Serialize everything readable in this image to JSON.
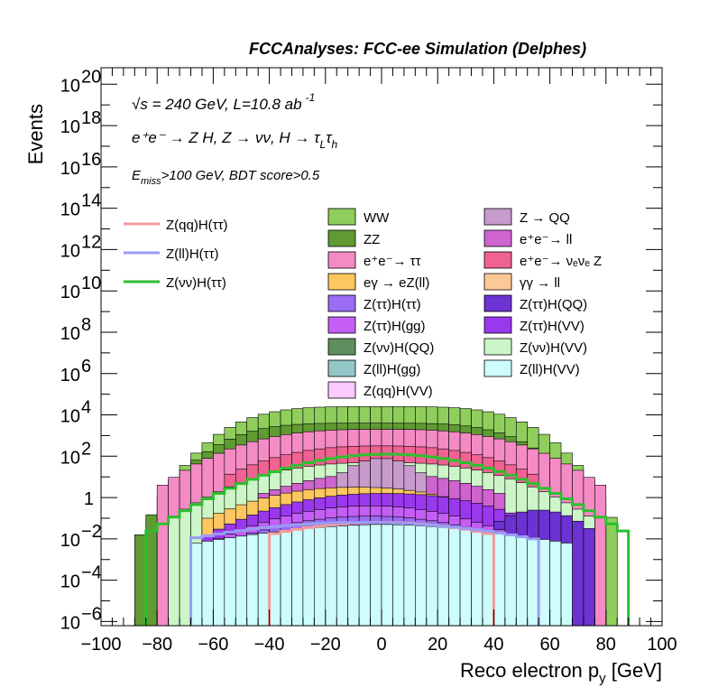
{
  "chart_data": {
    "type": "area",
    "header": "FCCAnalyses: FCC-ee Simulation (Delphes)",
    "ylabel": "Events",
    "xlabel": "Reco electron p",
    "xlabel_sub": "y",
    "xlabel_unit": " [GeV]",
    "annotations": {
      "energy": "√s = 240 GeV, L=10.8 ab",
      "energy_sup": "-1",
      "process": "e⁺e⁻ → Z H, Z → νν, H → τ",
      "process_sub1": "L",
      "process_tau": "τ",
      "process_sub2": "h",
      "cut_E": "E",
      "cut_sub": "miss",
      "cut_rest": ">100 GeV, BDT score>0.5"
    },
    "x_range": [
      -100,
      100
    ],
    "y_log_range": [
      -6.2,
      20.8
    ],
    "x_ticks": [
      {
        "v": -100,
        "label": "−100"
      },
      {
        "v": -80,
        "label": "−80"
      },
      {
        "v": -60,
        "label": "−60"
      },
      {
        "v": -40,
        "label": "−40"
      },
      {
        "v": -20,
        "label": "−20"
      },
      {
        "v": 0,
        "label": "0"
      },
      {
        "v": 20,
        "label": "20"
      },
      {
        "v": 40,
        "label": "40"
      },
      {
        "v": 60,
        "label": "60"
      },
      {
        "v": 80,
        "label": "80"
      },
      {
        "v": 100,
        "label": "100"
      }
    ],
    "y_ticks": [
      {
        "exp": -6,
        "base": "10",
        "sup": "−6"
      },
      {
        "exp": -4,
        "base": "10",
        "sup": "−4"
      },
      {
        "exp": -2,
        "base": "10",
        "sup": "−2"
      },
      {
        "exp": 0,
        "base": "1",
        "sup": ""
      },
      {
        "exp": 2,
        "base": "10",
        "sup": "2"
      },
      {
        "exp": 4,
        "base": "10",
        "sup": "4"
      },
      {
        "exp": 6,
        "base": "10",
        "sup": "6"
      },
      {
        "exp": 8,
        "base": "10",
        "sup": "8"
      },
      {
        "exp": 10,
        "base": "10",
        "sup": "10"
      },
      {
        "exp": 12,
        "base": "10",
        "sup": "12"
      },
      {
        "exp": 14,
        "base": "10",
        "sup": "14"
      },
      {
        "exp": 16,
        "base": "10",
        "sup": "16"
      },
      {
        "exp": 18,
        "base": "10",
        "sup": "18"
      },
      {
        "exp": 20,
        "base": "10",
        "sup": "20"
      }
    ],
    "stack_layers": [
      {
        "name": "WW",
        "color": "#8fce5c",
        "range": [
          -84,
          84
        ],
        "peak": 4.4,
        "edge": -1.5,
        "shape": 0.5
      },
      {
        "name": "ZZ",
        "color": "#5f9a32",
        "range": [
          -86,
          80
        ],
        "peak": 3.6,
        "edge": -1.8,
        "shape": 0.5
      },
      {
        "name": "e⁺e⁻→ ττ",
        "color": "#f58bc5",
        "range": [
          -78,
          78
        ],
        "peak": 3.3,
        "edge": 0.6,
        "shape": 0.7
      },
      {
        "name": "e⁺e⁻→ νₑνₑ Z",
        "color": "#f06292",
        "range": [
          -56,
          56
        ],
        "peak": 2.5,
        "edge": 1.0,
        "shape": 0.8
      },
      {
        "name": "Z(νν)H(VV)",
        "color": "#ccf5c8",
        "range": [
          -74,
          74
        ],
        "peak": 1.7,
        "edge": -0.9,
        "shape": 0.8
      },
      {
        "name": "e⁺e⁻→ ll",
        "color": "#cf63cf",
        "range": [
          -42,
          42
        ],
        "peak": 1.2,
        "edge": 0.2,
        "shape": 1.0
      },
      {
        "name": "Z → QQ",
        "color": "#c79bcc",
        "range": [
          -14,
          14
        ],
        "peak": 1.9,
        "edge": 1.2,
        "shape": 1.0
      },
      {
        "name": "eγ → eZ(ll)",
        "color": "#fcc75f",
        "range": [
          -62,
          44
        ],
        "peak": 0.5,
        "edge": -1.0,
        "shape": 0.9
      },
      {
        "name": "Z(ττ)H(VV)",
        "color": "#9a38ee",
        "range": [
          -62,
          64
        ],
        "peak": 0.2,
        "edge": -1.8,
        "shape": 0.9
      },
      {
        "name": "Z(ττ)H(QQ)",
        "color": "#6c32d2",
        "range": [
          38,
          74
        ],
        "peak": -0.6,
        "edge": -1.5,
        "shape": 1.0
      },
      {
        "name": "Z(ττ)H(gg)",
        "color": "#c45ef5",
        "range": [
          -58,
          50
        ],
        "peak": -0.4,
        "edge": -2.0,
        "shape": 1.0
      },
      {
        "name": "Z(ττ)H(ττ)",
        "color": "#9b6cf5",
        "range": [
          -68,
          60
        ],
        "peak": -0.9,
        "edge": -2.8,
        "shape": 1.0
      },
      {
        "name": "Z(ll)H(VV)",
        "color": "#ccfcfc",
        "range": [
          -66,
          66
        ],
        "peak": -1.3,
        "edge": -2.2,
        "shape": 1.2
      }
    ],
    "other_legend": [
      {
        "name": "Z(νν)H(QQ)",
        "color": "#5e8f5e"
      },
      {
        "name": "Z(ll)H(gg)",
        "color": "#93c6c6"
      },
      {
        "name": "Z(qq)H(VV)",
        "color": "#fccafc"
      },
      {
        "name": "γγ → ll",
        "color": "#fcc895"
      }
    ],
    "line_series": [
      {
        "name": "Z(qq)H(ττ)",
        "color": "#f39a9a",
        "range": [
          -40,
          40
        ],
        "peak": -1.2,
        "edge": -1.8
      },
      {
        "name": "Z(ll)H(ττ)",
        "color": "#9b9bf2",
        "range": [
          -68,
          54
        ],
        "peak": -1.2,
        "edge": -2.0
      },
      {
        "name": "Z(νν)H(ττ)",
        "color": "#2fbe2f",
        "range": [
          -84,
          88
        ],
        "peak": 2.1,
        "edge": -1.8
      }
    ]
  },
  "legend": {
    "lines": [
      "Z(qq)H(ττ)",
      "Z(ll)H(ττ)",
      "Z(νν)H(ττ)"
    ],
    "col1": [
      {
        "label": "WW",
        "color": "#8fce5c"
      },
      {
        "label": "ZZ",
        "color": "#5f9a32"
      },
      {
        "label": "e⁺e⁻→ ττ",
        "color": "#f58bc5"
      },
      {
        "label": "eγ → eZ(ll)",
        "color": "#fcc75f"
      },
      {
        "label": "Z(ττ)H(ττ)",
        "color": "#9b6cf5"
      },
      {
        "label": "Z(ττ)H(gg)",
        "color": "#c45ef5"
      },
      {
        "label": "Z(νν)H(QQ)",
        "color": "#5e8f5e"
      },
      {
        "label": "Z(ll)H(gg)",
        "color": "#93c6c6"
      },
      {
        "label": "Z(qq)H(VV)",
        "color": "#fccafc"
      }
    ],
    "col2": [
      {
        "label": "Z → QQ",
        "color": "#c79bcc"
      },
      {
        "label": "e⁺e⁻→ ll",
        "color": "#cf63cf"
      },
      {
        "label": "e⁺e⁻→ νₑνₑ Z",
        "color": "#f06292"
      },
      {
        "label": "γγ → ll",
        "color": "#fcc895"
      },
      {
        "label": "Z(ττ)H(QQ)",
        "color": "#6c32d2"
      },
      {
        "label": "Z(ττ)H(VV)",
        "color": "#9a38ee"
      },
      {
        "label": "Z(νν)H(VV)",
        "color": "#ccf5c8"
      },
      {
        "label": "Z(ll)H(VV)",
        "color": "#ccfcfc"
      }
    ]
  }
}
